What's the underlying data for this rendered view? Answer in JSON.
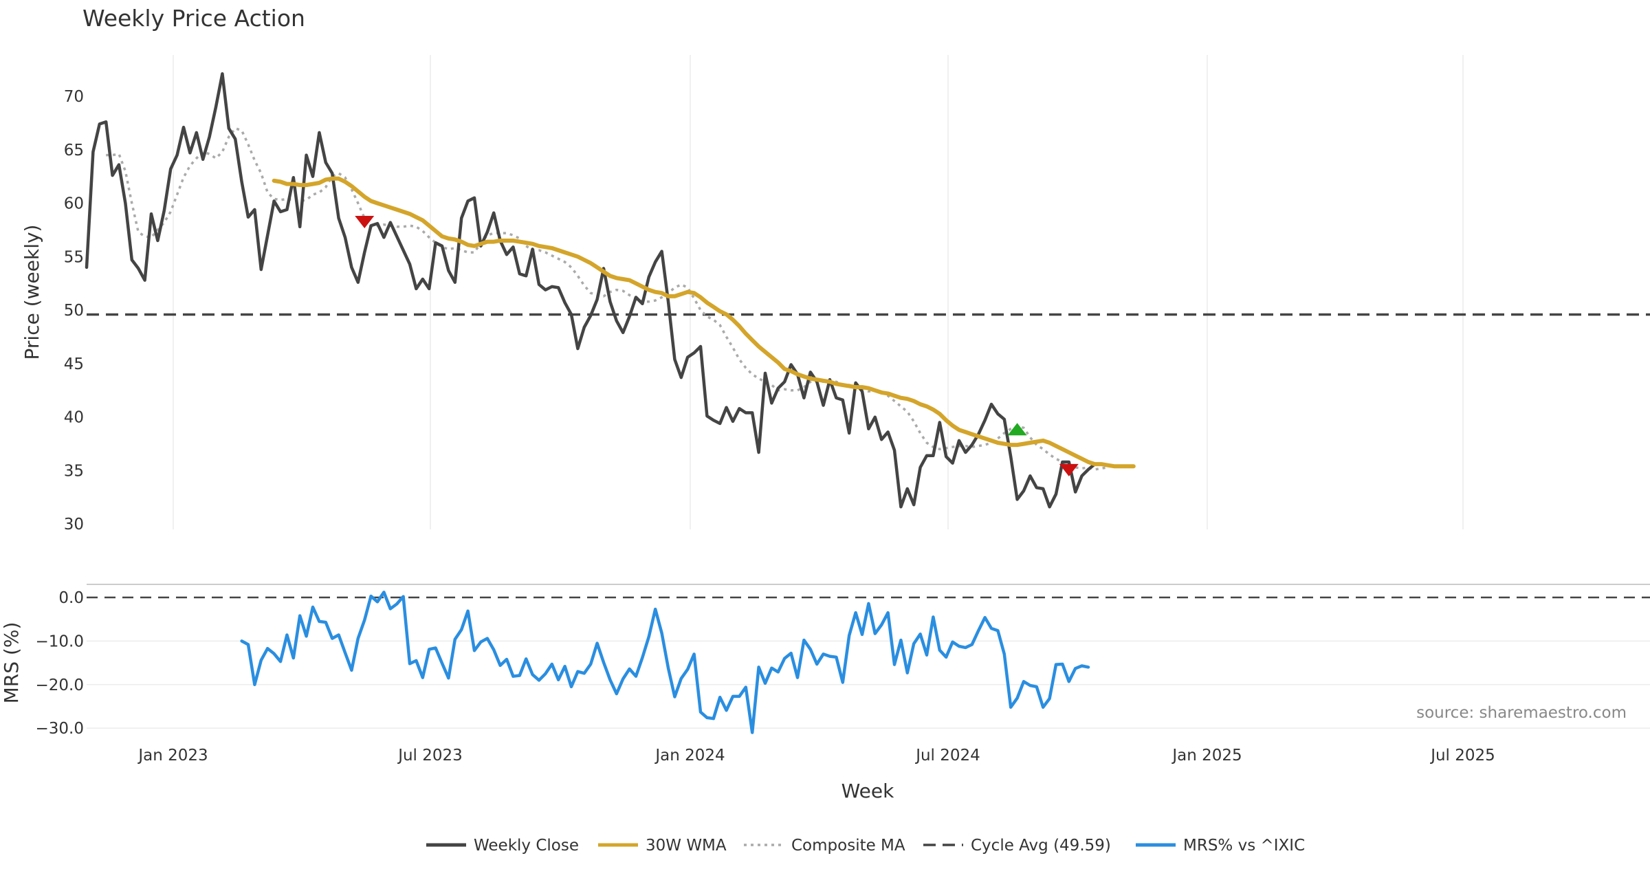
{
  "chart_data": {
    "type": "line",
    "title": "Weekly Price Action",
    "source_note": "source: sharemaestro.com",
    "xlabel": "Week",
    "x_ticks": [
      "Jan 2023",
      "Jul 2023",
      "Jan 2024",
      "Jul 2024",
      "Jan 2025",
      "Jul 2025"
    ],
    "price_panel": {
      "ylabel": "Price (weekly)",
      "ylim": [
        29.5,
        74.5
      ],
      "y_ticks": [
        "30",
        "35",
        "40",
        "45",
        "50",
        "55",
        "60",
        "65",
        "70"
      ],
      "series": [
        {
          "name": "Weekly Close",
          "color": "#444444",
          "style": "solid",
          "start_week": 0,
          "values": [
            54.0,
            64.8,
            67.4,
            67.6,
            62.6,
            63.6,
            60.0,
            54.7,
            53.9,
            52.8,
            59.0,
            56.5,
            59.3,
            63.2,
            64.5,
            67.1,
            64.7,
            66.6,
            64.1,
            66.2,
            69.0,
            72.1,
            67.0,
            66.0,
            62.0,
            58.7,
            59.4,
            53.8,
            57.0,
            60.2,
            59.2,
            59.4,
            62.4,
            57.8,
            64.5,
            62.5,
            66.6,
            63.8,
            62.8,
            58.6,
            56.8,
            54.0,
            52.6,
            55.4,
            57.9,
            58.1,
            56.8,
            58.2,
            56.9,
            55.6,
            54.3,
            52.0,
            52.9,
            52.0,
            56.3,
            56.0,
            53.7,
            52.6,
            58.6,
            60.2,
            60.5,
            56.0,
            57.3,
            59.1,
            56.5,
            55.2,
            55.9,
            53.4,
            53.2,
            55.7,
            52.4,
            51.9,
            52.2,
            52.1,
            50.7,
            49.6,
            46.4,
            48.4,
            49.5,
            51.0,
            53.9,
            50.8,
            49.0,
            47.9,
            49.4,
            51.2,
            50.6,
            53.1,
            54.5,
            55.5,
            50.8,
            45.4,
            43.7,
            45.6,
            46.0,
            46.6,
            40.1,
            39.7,
            39.4,
            40.9,
            39.6,
            40.8,
            40.4,
            40.4,
            36.7,
            44.1,
            41.3,
            42.7,
            43.3,
            44.9,
            44.0,
            41.8,
            44.2,
            43.3,
            41.1,
            43.5,
            41.8,
            41.6,
            38.5,
            43.2,
            42.4,
            38.9,
            40.0,
            37.9,
            38.6,
            36.9,
            31.6,
            33.3,
            31.8,
            35.3,
            36.4,
            36.4,
            39.5,
            36.3,
            35.7,
            37.8,
            36.7,
            37.4,
            38.4,
            39.7,
            41.2,
            40.3,
            39.8,
            36.3,
            32.3,
            33.1,
            34.5,
            33.4,
            33.3,
            31.6,
            32.8,
            35.8,
            35.8,
            33.0,
            34.5,
            35.1,
            35.6
          ]
        },
        {
          "name": "30W WMA",
          "color": "#d4a52a",
          "style": "solid",
          "start_week": 29,
          "values": [
            62.1,
            62.0,
            61.8,
            61.8,
            61.7,
            61.7,
            61.8,
            61.9,
            62.2,
            62.3,
            62.3,
            62.0,
            61.6,
            61.1,
            60.6,
            60.2,
            60.0,
            59.8,
            59.6,
            59.4,
            59.2,
            59.0,
            58.7,
            58.4,
            57.9,
            57.4,
            56.9,
            56.7,
            56.6,
            56.4,
            56.1,
            56.0,
            56.2,
            56.4,
            56.4,
            56.5,
            56.5,
            56.5,
            56.4,
            56.3,
            56.2,
            56.0,
            55.9,
            55.8,
            55.6,
            55.4,
            55.2,
            55.0,
            54.7,
            54.4,
            54.0,
            53.6,
            53.2,
            53.0,
            52.9,
            52.8,
            52.5,
            52.2,
            51.9,
            51.7,
            51.6,
            51.3,
            51.3,
            51.5,
            51.7,
            51.6,
            51.2,
            50.7,
            50.3,
            49.9,
            49.6,
            49.1,
            48.5,
            47.8,
            47.2,
            46.6,
            46.1,
            45.6,
            45.1,
            44.5,
            44.3,
            44.0,
            43.8,
            43.6,
            43.5,
            43.4,
            43.3,
            43.1,
            43.0,
            42.9,
            42.8,
            42.8,
            42.7,
            42.5,
            42.3,
            42.2,
            42.0,
            41.8,
            41.7,
            41.5,
            41.2,
            41.0,
            40.7,
            40.3,
            39.7,
            39.2,
            38.8,
            38.6,
            38.4,
            38.2,
            38.0,
            37.8,
            37.6,
            37.5,
            37.4,
            37.4,
            37.5,
            37.6,
            37.7,
            37.8,
            37.6,
            37.3,
            37.0,
            36.7,
            36.4,
            36.1,
            35.8,
            35.6,
            35.6,
            35.5,
            35.4,
            35.4,
            35.4,
            35.4
          ]
        },
        {
          "name": "Composite MA",
          "color": "#aaaaaa",
          "style": "dotted",
          "start_week": 3,
          "values": [
            64.5,
            64.5,
            64.6,
            63.0,
            60.0,
            57.3,
            56.9,
            56.8,
            57.5,
            58.2,
            59.2,
            60.8,
            62.4,
            63.5,
            64.2,
            64.8,
            64.6,
            64.2,
            64.8,
            66.2,
            67.0,
            66.8,
            65.5,
            64.0,
            62.8,
            61.0,
            60.4,
            60.3,
            60.4,
            60.3,
            60.2,
            60.3,
            60.8,
            61.0,
            61.5,
            62.5,
            62.8,
            62.4,
            61.3,
            60.0,
            58.6,
            57.8,
            57.9,
            58.0,
            57.9,
            57.8,
            57.8,
            57.9,
            57.8,
            57.4,
            56.8,
            56.3,
            55.9,
            55.7,
            55.8,
            55.6,
            55.4,
            55.4,
            56.3,
            57.0,
            57.2,
            57.2,
            57.2,
            57.0,
            56.7,
            56.0,
            55.6,
            55.6,
            55.4,
            55.1,
            54.8,
            54.5,
            54.0,
            53.2,
            52.3,
            51.6,
            51.4,
            51.3,
            51.7,
            51.9,
            51.8,
            51.4,
            51.1,
            50.8,
            50.8,
            50.9,
            51.2,
            51.6,
            52.1,
            52.4,
            52.1,
            51.1,
            50.0,
            49.4,
            49.1,
            48.6,
            47.5,
            46.5,
            45.4,
            44.6,
            44.0,
            43.6,
            43.3,
            43.0,
            42.5,
            42.6,
            42.5,
            42.5,
            42.8,
            43.3,
            43.5,
            43.3,
            43.4,
            43.3,
            43.0,
            43.0,
            42.8,
            42.7,
            42.4,
            42.5,
            42.3,
            42.0,
            41.5,
            41.0,
            40.5,
            39.6,
            38.5,
            37.6,
            37.2,
            37.0,
            37.1,
            37.2,
            37.3,
            37.3,
            37.2,
            37.3,
            37.4,
            37.6,
            38.0,
            38.5,
            38.9,
            39.1,
            39.0,
            38.1,
            37.4,
            37.0,
            36.5,
            36.1,
            35.8,
            35.5,
            35.3,
            35.2,
            35.3,
            35.1,
            35.2,
            35.3
          ]
        },
        {
          "name": "Cycle Avg (49.59)",
          "color": "#444444",
          "style": "dashed",
          "constant": 49.59
        }
      ],
      "markers": [
        {
          "type": "sell",
          "symbol": "triangle-down",
          "color": "#cc1111",
          "week": 43,
          "value": 58.3
        },
        {
          "type": "buy",
          "symbol": "triangle-up",
          "color": "#22aa22",
          "week": 144,
          "value": 38.8
        },
        {
          "type": "sell",
          "symbol": "triangle-down",
          "color": "#cc1111",
          "week": 152,
          "value": 35.1
        }
      ]
    },
    "mrs_panel": {
      "ylabel": "MRS (%)",
      "ylim": [
        -32.5,
        3
      ],
      "y_ticks": [
        "0.0",
        "−10.0",
        "−20.0",
        "−30.0"
      ],
      "zero_line": 0,
      "series": [
        {
          "name": "MRS% vs ^IXIC",
          "color": "#2a8ee0",
          "style": "solid",
          "start_week": 24,
          "values": [
            -10.0,
            -10.8,
            -20.0,
            -14.4,
            -11.7,
            -12.9,
            -14.7,
            -8.6,
            -13.9,
            -4.2,
            -8.9,
            -2.2,
            -5.5,
            -5.7,
            -9.4,
            -8.6,
            -12.7,
            -16.7,
            -9.4,
            -5.2,
            0.3,
            -1.0,
            1.2,
            -2.6,
            -1.5,
            0.2,
            -15.2,
            -14.5,
            -18.4,
            -11.9,
            -11.6,
            -15.1,
            -18.5,
            -9.6,
            -7.4,
            -3.1,
            -12.2,
            -10.2,
            -9.4,
            -12.0,
            -15.6,
            -14.2,
            -18.1,
            -17.9,
            -14.1,
            -17.7,
            -19.0,
            -17.5,
            -15.3,
            -18.9,
            -15.8,
            -20.5,
            -17.0,
            -17.4,
            -15.3,
            -10.5,
            -14.9,
            -18.9,
            -22.1,
            -18.7,
            -16.4,
            -18.1,
            -13.8,
            -9.0,
            -2.7,
            -8.2,
            -16.2,
            -22.8,
            -18.6,
            -16.5,
            -13.0,
            -26.3,
            -27.6,
            -27.8,
            -22.9,
            -25.9,
            -22.7,
            -22.7,
            -20.6,
            -31.0,
            -16.0,
            -19.7,
            -16.2,
            -17.1,
            -14.0,
            -12.8,
            -18.4,
            -9.8,
            -11.9,
            -15.3,
            -13.0,
            -13.5,
            -13.7,
            -19.5,
            -8.7,
            -3.5,
            -8.5,
            -1.4,
            -8.3,
            -6.3,
            -3.5,
            -15.4,
            -9.8,
            -17.3,
            -10.6,
            -8.4,
            -13.2,
            -4.5,
            -12.1,
            -13.7,
            -10.2,
            -11.2,
            -11.5,
            -10.8,
            -7.6,
            -4.6,
            -7.1,
            -7.6,
            -13.0,
            -25.2,
            -23.1,
            -19.3,
            -20.2,
            -20.5,
            -25.2,
            -23.2,
            -15.4,
            -15.3,
            -19.3,
            -16.3,
            -15.7,
            -16.0
          ]
        }
      ]
    },
    "legend_placement": "bottom-center",
    "legend": [
      {
        "label": "Weekly Close",
        "color": "#444444",
        "style": "solid"
      },
      {
        "label": "30W WMA",
        "color": "#d4a52a",
        "style": "solid"
      },
      {
        "label": "Composite MA",
        "color": "#aaaaaa",
        "style": "dotted"
      },
      {
        "label": "Cycle Avg (49.59)",
        "color": "#444444",
        "style": "dashed"
      },
      {
        "label": "MRS% vs ^IXIC",
        "color": "#2a8ee0",
        "style": "solid"
      }
    ]
  }
}
